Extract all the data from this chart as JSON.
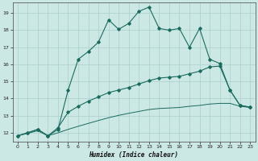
{
  "xlabel": "Humidex (Indice chaleur)",
  "bg_color": "#cce8e5",
  "grid_color": "#aacfcc",
  "line_color": "#1a6b5e",
  "xlim": [
    -0.5,
    23.5
  ],
  "ylim": [
    11.5,
    19.6
  ],
  "xticks": [
    0,
    1,
    2,
    3,
    4,
    5,
    6,
    7,
    8,
    9,
    10,
    11,
    12,
    13,
    14,
    15,
    16,
    17,
    18,
    19,
    20,
    21,
    22,
    23
  ],
  "yticks": [
    12,
    13,
    14,
    15,
    16,
    17,
    18,
    19
  ],
  "line1_x": [
    0,
    1,
    2,
    3,
    4,
    5,
    6,
    7,
    8,
    9,
    10,
    11,
    12,
    13,
    14,
    15,
    16,
    17,
    18,
    19,
    20,
    21,
    22,
    23
  ],
  "line1_y": [
    11.82,
    12.0,
    12.2,
    11.82,
    12.2,
    14.5,
    16.3,
    16.75,
    17.3,
    18.6,
    18.05,
    18.4,
    19.1,
    19.35,
    18.1,
    18.0,
    18.1,
    17.0,
    18.1,
    16.3,
    16.05,
    14.5,
    13.6,
    13.5
  ],
  "line2_x": [
    0,
    1,
    2,
    3,
    4,
    5,
    6,
    7,
    8,
    9,
    10,
    11,
    12,
    13,
    14,
    15,
    16,
    17,
    18,
    19,
    20,
    21,
    22,
    23
  ],
  "line2_y": [
    11.82,
    12.0,
    12.2,
    11.82,
    12.3,
    13.2,
    13.55,
    13.85,
    14.1,
    14.35,
    14.5,
    14.65,
    14.85,
    15.05,
    15.2,
    15.25,
    15.3,
    15.45,
    15.6,
    15.85,
    15.9,
    14.5,
    13.6,
    13.5
  ],
  "line3_x": [
    0,
    1,
    2,
    3,
    4,
    5,
    6,
    7,
    8,
    9,
    10,
    11,
    12,
    13,
    14,
    15,
    16,
    17,
    18,
    19,
    20,
    21,
    22,
    23
  ],
  "line3_y": [
    11.82,
    11.97,
    12.12,
    11.82,
    12.0,
    12.2,
    12.38,
    12.55,
    12.72,
    12.88,
    13.02,
    13.14,
    13.25,
    13.36,
    13.42,
    13.45,
    13.48,
    13.55,
    13.6,
    13.68,
    13.72,
    13.72,
    13.55,
    13.48
  ]
}
